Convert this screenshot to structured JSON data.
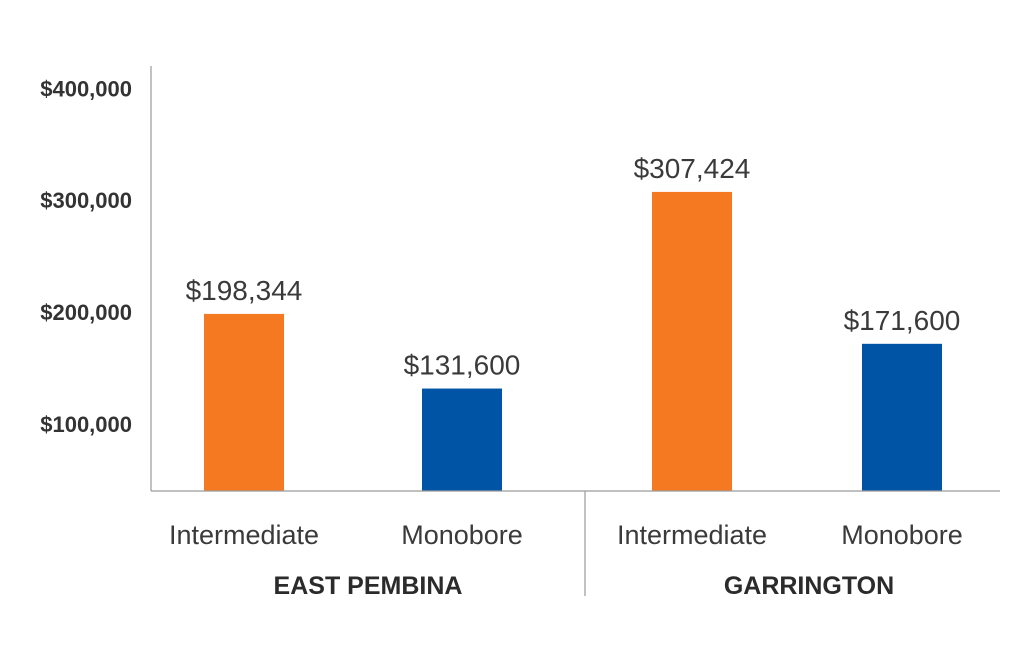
{
  "chart_data": {
    "type": "bar",
    "title": "",
    "xlabel": "",
    "ylabel": "",
    "ylim": [
      40000,
      420000
    ],
    "yticks": [
      100000,
      200000,
      300000,
      400000
    ],
    "ytick_labels": [
      "$100,000",
      "$200,000",
      "$300,000",
      "$400,000"
    ],
    "groups": [
      "EAST PEMBINA",
      "GARRINGTON"
    ],
    "categories": [
      "Intermediate",
      "Monobore",
      "Intermediate",
      "Monobore"
    ],
    "values": [
      198344,
      131600,
      307424,
      171600
    ],
    "data_labels": [
      "$198,344",
      "$131,600",
      "$307,424",
      "$171,600"
    ],
    "colors": [
      "#F47920",
      "#0054A6",
      "#F47920",
      "#0054A6"
    ],
    "grid": false,
    "legend": "none"
  }
}
